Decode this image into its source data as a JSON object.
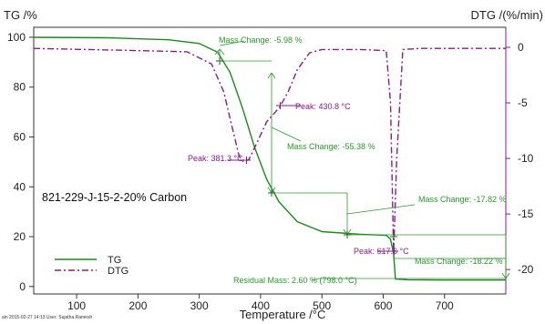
{
  "chart_data": {
    "type": "line",
    "title": "",
    "sample_label": "821-229-J-15-2-20% Carbon",
    "xlabel": "Temperature /°C",
    "ylabel_left": "TG /%",
    "ylabel_right": "DTG /(%/min)",
    "xlim": [
      30,
      800
    ],
    "ylim_left": [
      -3,
      104
    ],
    "ylim_right": [
      -22.2,
      1.8
    ],
    "x_ticks": [
      100,
      200,
      300,
      400,
      500,
      600,
      700
    ],
    "y_ticks_left": [
      0,
      20,
      40,
      60,
      80,
      100
    ],
    "y_ticks_right": [
      0,
      -5,
      -10,
      -15,
      -20
    ],
    "grid": false,
    "legend_position": "bottom-left",
    "colors": {
      "tg": "#1a8a1a",
      "dtg": "#8a1a8a",
      "annotation": "#2a9a2a"
    },
    "series": [
      {
        "name": "TG",
        "axis": "left",
        "x": [
          30,
          150,
          250,
          300,
          330,
          350,
          370,
          390,
          410,
          430,
          460,
          500,
          560,
          605,
          612,
          617,
          620,
          640,
          700,
          800
        ],
        "y": [
          100,
          99.8,
          99,
          97.5,
          94,
          86,
          72,
          56,
          43,
          34,
          26,
          22,
          21,
          20.5,
          19,
          13,
          3,
          2.7,
          2.6,
          2.6
        ]
      },
      {
        "name": "DTG",
        "axis": "right",
        "x": [
          30,
          200,
          280,
          320,
          340,
          355,
          365,
          372,
          381,
          395,
          410,
          431,
          445,
          460,
          480,
          500,
          560,
          605,
          612,
          617,
          622,
          632,
          660,
          700,
          800
        ],
        "y": [
          -0.1,
          -0.3,
          -0.4,
          -1.5,
          -4,
          -7.5,
          -9.8,
          -10.3,
          -10.1,
          -8.5,
          -6.7,
          -5.4,
          -4.0,
          -2.0,
          -0.5,
          -0.2,
          -0.2,
          -0.3,
          -5,
          -18.5,
          -10,
          -0.2,
          -0.1,
          -0.1,
          -0.1
        ]
      }
    ],
    "annotations": [
      {
        "text": "Mass Change: -5.98 %",
        "kind": "mass-change"
      },
      {
        "text": "Mass Change: -55.38 %",
        "kind": "mass-change"
      },
      {
        "text": "Mass Change: -17.82 %",
        "kind": "mass-change"
      },
      {
        "text": "Mass Change: -18.22 %",
        "kind": "mass-change"
      },
      {
        "text": "Residual Mass: 2.60 % (798.0 °C)",
        "kind": "residual"
      },
      {
        "text": "Peak: 430.8 °C",
        "kind": "peak",
        "x": 430.8,
        "y": -5.4
      },
      {
        "text": "Peak: 381.3 °C",
        "kind": "peak",
        "x": 381.3,
        "y": -10.1
      },
      {
        "text": "Peak: 617.6 °C",
        "kind": "peak",
        "x": 617.6,
        "y": -18.5
      }
    ],
    "legend": [
      "TG",
      "DTG"
    ]
  },
  "footer": "ain 2015-02-27 14:13 User: Sujatha.Ramesh"
}
